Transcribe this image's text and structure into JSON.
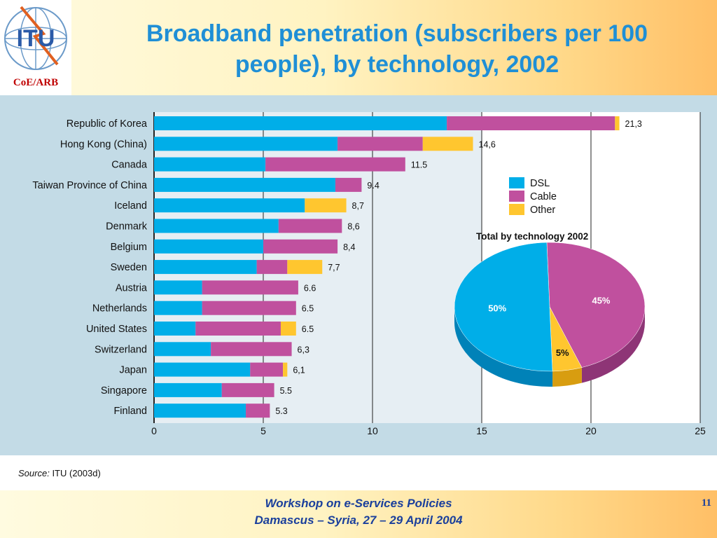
{
  "header": {
    "logo_text": "ITU",
    "logo_caption": "CoE/ARB",
    "title_line1": "Broadband penetration (subscribers per 100",
    "title_line2": "people), by technology, 2002"
  },
  "colors": {
    "dsl": "#00aee8",
    "cable": "#c0509e",
    "other": "#ffc62f",
    "title": "#1f8fd6",
    "footer": "#1a3f9c"
  },
  "chart_data": [
    {
      "type": "bar",
      "orientation": "horizontal",
      "stacked": true,
      "categories": [
        "Republic of Korea",
        "Hong Kong (China)",
        "Canada",
        "Taiwan Province of China",
        "Iceland",
        "Denmark",
        "Belgium",
        "Sweden",
        "Austria",
        "Netherlands",
        "United States",
        "Switzerland",
        "Japan",
        "Singapore",
        "Finland"
      ],
      "series": [
        {
          "name": "DSL",
          "color": "#00aee8",
          "values": [
            13.4,
            8.4,
            5.1,
            8.3,
            6.9,
            5.7,
            5.0,
            4.7,
            2.2,
            2.2,
            1.9,
            2.6,
            4.4,
            3.1,
            4.2
          ]
        },
        {
          "name": "Cable",
          "color": "#c0509e",
          "values": [
            7.7,
            3.9,
            6.4,
            1.2,
            0.0,
            2.9,
            3.4,
            1.4,
            4.4,
            4.3,
            3.9,
            3.7,
            1.5,
            2.4,
            1.1
          ]
        },
        {
          "name": "Other",
          "color": "#ffc62f",
          "values": [
            0.2,
            2.3,
            0.0,
            0.0,
            1.9,
            0.0,
            0.0,
            1.6,
            0.0,
            0.0,
            0.7,
            0.0,
            0.2,
            0.0,
            0.0
          ]
        }
      ],
      "total_labels": [
        "21,3",
        "14,6",
        "11.5",
        "9.4",
        "8,7",
        "8,6",
        "8,4",
        "7,7",
        "6.6",
        "6.5",
        "6.5",
        "6,3",
        "6,1",
        "5.5",
        "5.3"
      ],
      "xlim": [
        0,
        25
      ],
      "x_ticks": [
        0,
        5,
        10,
        15,
        20,
        25
      ],
      "gridlines": [
        5,
        10,
        15,
        20,
        25
      ],
      "legend": {
        "placement": "right",
        "entries": [
          "DSL",
          "Cable",
          "Other"
        ]
      }
    },
    {
      "type": "pie",
      "title": "Total by technology 2002",
      "slices": [
        {
          "name": "DSL",
          "value": 50,
          "label": "50%",
          "color": "#00aee8"
        },
        {
          "name": "Cable",
          "value": 45,
          "label": "45%",
          "color": "#c0509e"
        },
        {
          "name": "Other",
          "value": 5,
          "label": "5%",
          "color": "#ffc62f"
        }
      ]
    }
  ],
  "source": {
    "prefix": "Source:",
    "text": "ITU (2003d)"
  },
  "footer": {
    "line1": "Workshop on e-Services Policies",
    "line2": "Damascus – Syria,   27 – 29 April  2004",
    "page_number": "11"
  }
}
